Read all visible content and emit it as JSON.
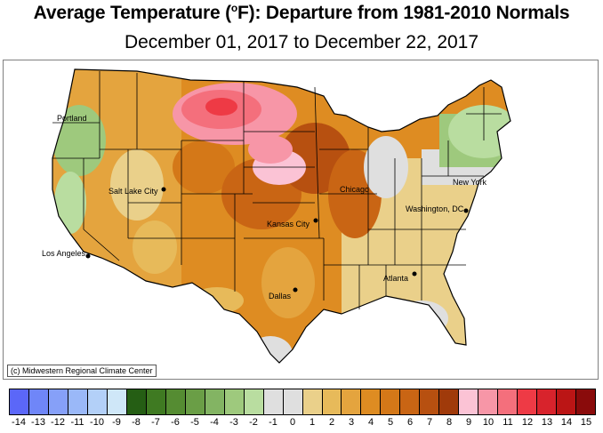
{
  "title": {
    "prefix": "Average Temperature (",
    "degree": "o",
    "suffix": "F): Departure from 1981-2010 Normals"
  },
  "subtitle": "December 01, 2017 to December 22, 2017",
  "credit": "(c) Midwestern Regional Climate Center",
  "cities": [
    {
      "name": "Portland",
      "marker": false
    },
    {
      "name": "Salt Lake City",
      "marker": true
    },
    {
      "name": "Los Angeles",
      "marker": true
    },
    {
      "name": "Kansas City",
      "marker": true
    },
    {
      "name": "Dallas",
      "marker": true
    },
    {
      "name": "Chicago",
      "marker": false
    },
    {
      "name": "Atlanta",
      "marker": true
    },
    {
      "name": "Washington, DC",
      "marker": true
    },
    {
      "name": "New York",
      "marker": false
    }
  ],
  "legend": {
    "colors": [
      "#5b67f8",
      "#6f86f8",
      "#86a0f8",
      "#9ab8f8",
      "#b3d0f8",
      "#cfe7f8",
      "#255e14",
      "#3f7a22",
      "#558c32",
      "#6a9e46",
      "#83b463",
      "#9ec97d",
      "#b9dda0",
      "#dfdfdf",
      "#dfdfdf",
      "#ead08a",
      "#e7ba5a",
      "#e4a43e",
      "#de8c22",
      "#d47818",
      "#c96514",
      "#b75010",
      "#a03a0a",
      "#fbc3d5",
      "#f796a7",
      "#f46f7c",
      "#ee3a45",
      "#d8232c",
      "#bb1515",
      "#8a0b0b"
    ],
    "ticks": [
      "-14",
      "-13",
      "-12",
      "-11",
      "-10",
      "-9",
      "-8",
      "-7",
      "-6",
      "-5",
      "-4",
      "-3",
      "-2",
      "-1",
      "0",
      "1",
      "2",
      "3",
      "4",
      "5",
      "6",
      "7",
      "8",
      "9",
      "10",
      "11",
      "12",
      "13",
      "14",
      "15"
    ]
  }
}
